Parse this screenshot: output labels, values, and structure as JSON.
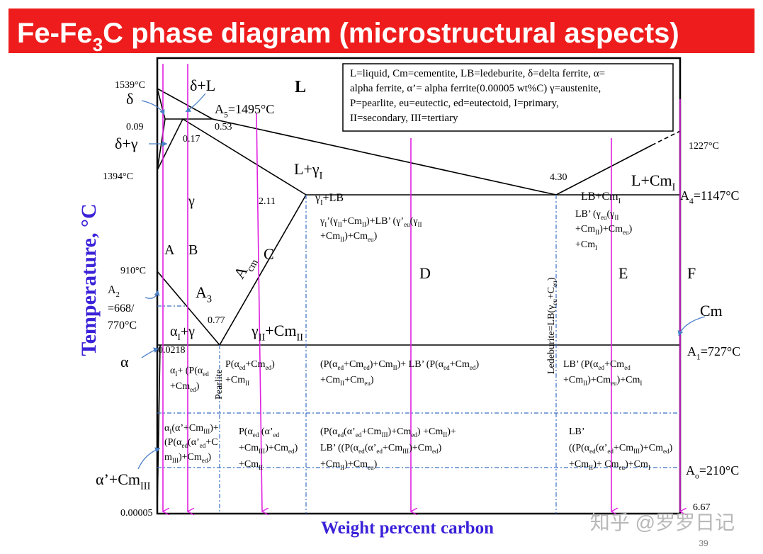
{
  "title": [
    "Fe-Fe",
    "3",
    "C phase diagram (microstructural aspects)"
  ],
  "legend": [
    "L=liquid, Cm=cementite, LB=ledeburite, δ=delta ferrite, α=",
    "alpha ferrite, α’= alpha ferrite(0.00005 wt%C) γ=austenite,",
    "P=pearlite, eu=eutectic, ed=eutectoid, I=primary,",
    "II=secondary, III=tertiary"
  ],
  "labels": [
    [
      "1539°C"
    ],
    [
      "δ"
    ],
    [
      "δ+L"
    ],
    [
      "L"
    ],
    [
      "A",
      "5",
      "=1495°C"
    ],
    [
      "0.09"
    ],
    [
      "0.53"
    ],
    [
      "δ+γ"
    ],
    [
      "0.17"
    ],
    [
      "1394°C"
    ],
    [
      "L+γ",
      "I"
    ],
    [
      "γ"
    ],
    [
      "2.11"
    ],
    [
      "γ",
      "I",
      "+LB"
    ],
    [
      "4.30"
    ],
    [
      "L+Cm",
      "I"
    ],
    [
      "1227°C"
    ],
    [
      "LB+Cm",
      "I"
    ],
    [
      "A",
      "4",
      "=1147°C"
    ],
    [
      "γ",
      "I",
      "’(γ",
      "II",
      "+Cm",
      "II",
      ")+LB’ (γ’",
      "eu",
      "(γ",
      "II"
    ],
    [
      "+Cm",
      "II",
      ")+Cm",
      "eu",
      ")"
    ],
    [
      "LB’ (γ",
      "eu",
      "(γ",
      "II"
    ],
    [
      "+Cm",
      "II",
      ")+Cm",
      "eu",
      ")"
    ],
    [
      "+Cm",
      "I"
    ],
    [
      "A"
    ],
    [
      "B"
    ],
    [
      "A",
      "cm"
    ],
    [
      "C"
    ],
    [
      "D"
    ],
    [
      "E"
    ],
    [
      "F"
    ],
    [
      "910°C"
    ],
    [
      "A",
      "2"
    ],
    [
      "=668/"
    ],
    [
      "770°C"
    ],
    [
      "A",
      "3"
    ],
    [
      "0.77"
    ],
    [
      "α",
      "I",
      "+γ"
    ],
    [
      "γ",
      "II",
      "+Cm",
      "II"
    ],
    [
      "Cm"
    ],
    [
      "α"
    ],
    [
      "0.0218"
    ],
    [
      "A",
      "1",
      "=727°C"
    ],
    [
      "α",
      "I",
      "+ (P(α",
      "ed"
    ],
    [
      "+Cm",
      "ed",
      ")"
    ],
    [
      "Pearlite"
    ],
    [
      "P(α",
      "ed",
      "+Cm",
      "ed",
      ")"
    ],
    [
      "+Cm",
      "II"
    ],
    [
      "(P(α",
      "ed",
      "+Cm",
      "ed",
      ")+Cm",
      "II",
      ")+ LB’ (P(α",
      "ed",
      "+Cm",
      "ed",
      ")"
    ],
    [
      "+Cm",
      "II",
      "+Cm",
      "eu",
      ")"
    ],
    [
      "Ledeburite=LB(γ",
      "eu",
      "+C",
      "eu",
      ")"
    ],
    [
      "LB’  (P(α",
      "ed",
      "+Cm",
      "ed"
    ],
    [
      "+Cm",
      "II",
      ")+Cm",
      "eu",
      ")+Cm",
      "I"
    ],
    [
      "α",
      "I",
      "(α’+Cm",
      "III",
      ")+"
    ],
    [
      "(P(α",
      "ed",
      "(α’",
      "ed",
      "+C"
    ],
    [
      "m",
      "III",
      ")+Cm",
      "ed",
      ")"
    ],
    [
      "P(α",
      "ed",
      " (α’",
      "ed"
    ],
    [
      "+Cm",
      "III",
      ")+Cm",
      "ed",
      ")"
    ],
    [
      "+Cm",
      "II"
    ],
    [
      "(P(α",
      "ed",
      "(α’",
      "ed",
      "+Cm",
      "III",
      ")+Cm",
      "ed",
      ") +Cm",
      "II",
      ")+"
    ],
    [
      " LB’ ((P(α",
      "ed",
      "(α’",
      "ed",
      "+Cm",
      "III",
      ")+Cm",
      "ed",
      ")"
    ],
    [
      "+Cm",
      "II",
      ")+Cm",
      "eu",
      ")"
    ],
    [
      "LB’"
    ],
    [
      "((P(α",
      "ed",
      "(α’",
      "ed",
      "+Cm",
      "III",
      ")+Cm",
      "ed",
      ")"
    ],
    [
      "+Cm",
      "II",
      ")+ Cm",
      "eu",
      ")+Cm",
      "I"
    ],
    [
      "A",
      "o",
      "=210°C"
    ],
    [
      "α’+Cm",
      "III"
    ],
    [
      "0.00005"
    ],
    [
      "6.67"
    ],
    [
      "Weight percent carbon"
    ],
    [
      "Temperature, °C"
    ],
    [
      "知乎 @罗罗日记"
    ],
    [
      "39"
    ]
  ]
}
